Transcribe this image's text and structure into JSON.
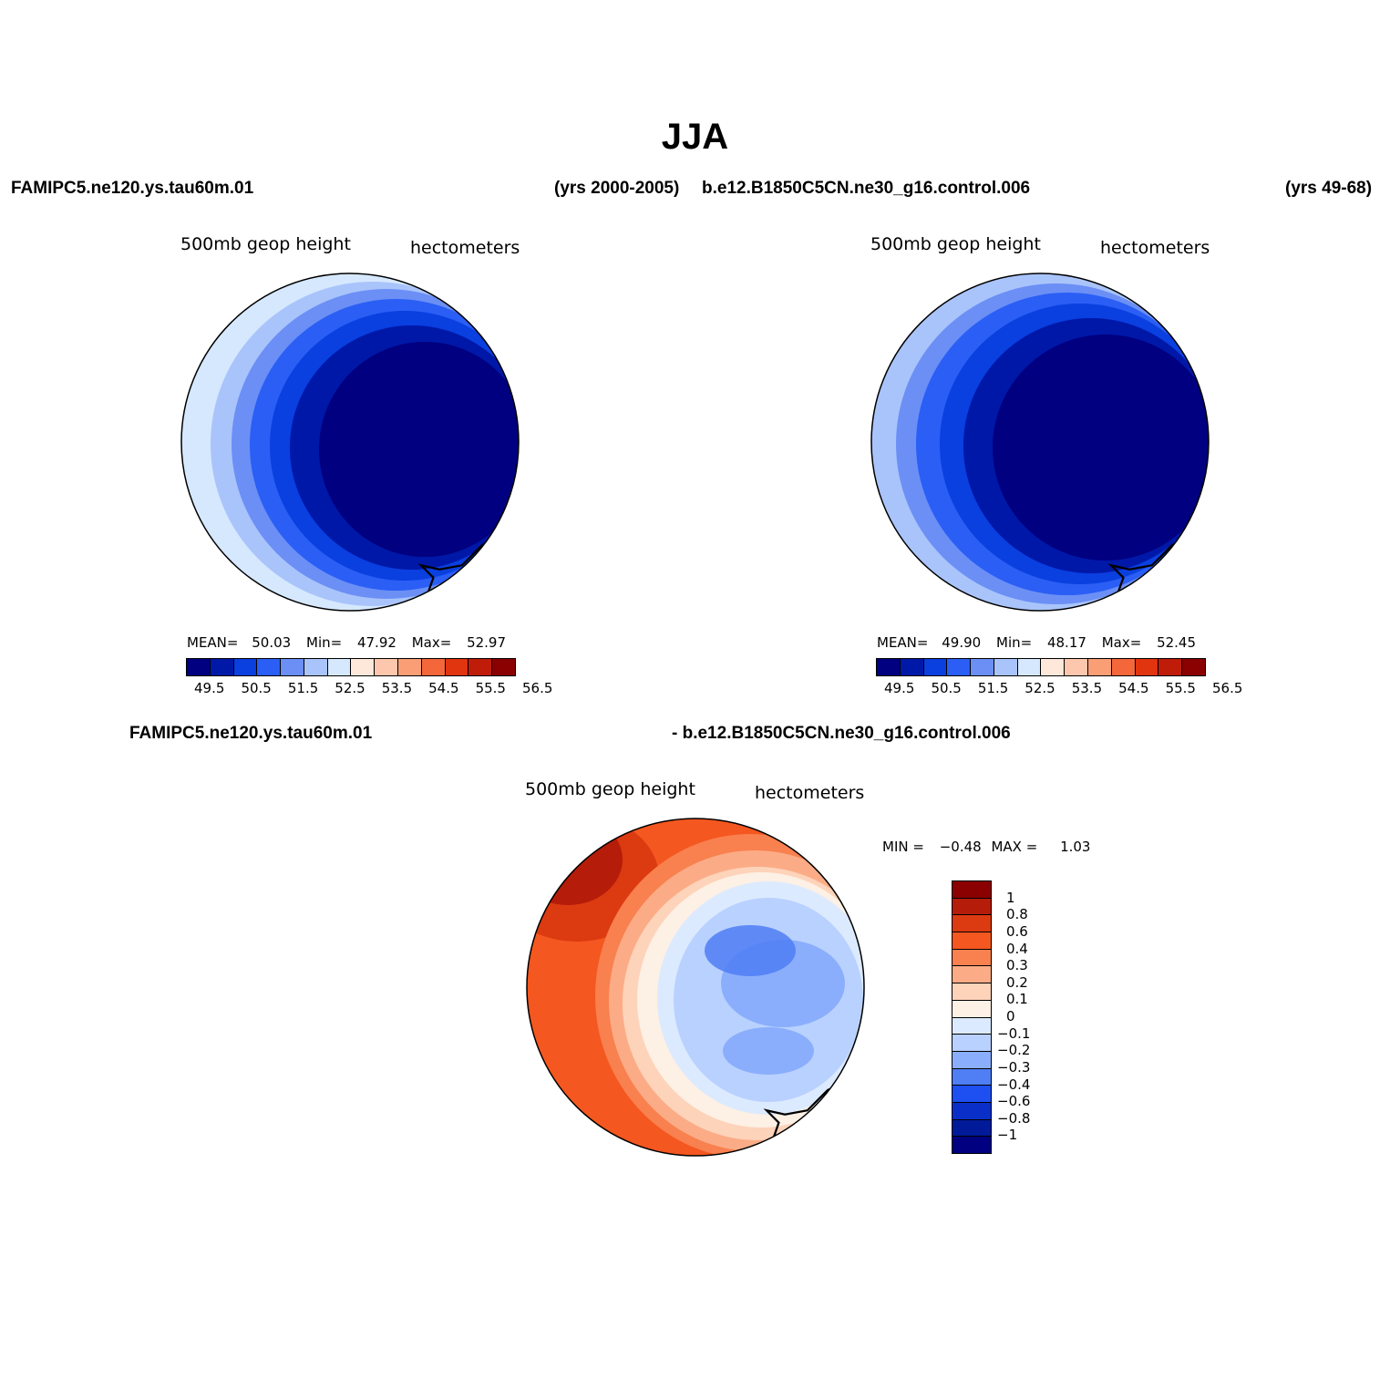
{
  "title": "JJA",
  "top_header": {
    "left_case": "FAMIPC5.ne120.ys.tau60m.01",
    "left_years": "(yrs 2000-2005)",
    "right_case": "b.e12.B1850C5CN.ne30_g16.control.006",
    "right_years": "(yrs 49-68)"
  },
  "panels": [
    {
      "variable": "500mb  geop  height",
      "units": "hectometers",
      "stats": {
        "mean_label": "MEAN=",
        "mean": "50.03",
        "min_label": "Min=",
        "min": "47.92",
        "max_label": "Max=",
        "max": "52.97"
      }
    },
    {
      "variable": "500mb  geop  height",
      "units": "hectometers",
      "stats": {
        "mean_label": "MEAN=",
        "mean": "49.90",
        "min_label": "Min=",
        "min": "48.17",
        "max_label": "Max=",
        "max": "52.45"
      }
    }
  ],
  "field_colorbar": {
    "colors": [
      "#000080",
      "#0018a8",
      "#0a3fe0",
      "#2a5ef5",
      "#6b8ff5",
      "#a9c4fb",
      "#d6e8fe",
      "#fde8da",
      "#fcc7ad",
      "#f99e75",
      "#f4673a",
      "#e0350f",
      "#bf1d0a",
      "#8b0000"
    ],
    "tick_labels": [
      "49.5",
      "50.5",
      "51.5",
      "52.5",
      "53.5",
      "54.5",
      "55.5",
      "56.5"
    ]
  },
  "diff_header": {
    "left": "FAMIPC5.ne120.ys.tau60m.01",
    "right": "- b.e12.B1850C5CN.ne30_g16.control.006"
  },
  "diff_panel": {
    "variable": "500mb  geop  height",
    "units": "hectometers",
    "minmax": {
      "min_label": "MIN =",
      "min": "−0.48",
      "max_label": "MAX =",
      "max": "1.03"
    }
  },
  "diff_colorbar": {
    "colors_top_to_bottom": [
      "#8b0000",
      "#b51d0a",
      "#dc3a10",
      "#f4571f",
      "#f9804f",
      "#fbac86",
      "#fdd3ba",
      "#fdf0e4",
      "#dceaff",
      "#b9d1ff",
      "#8aaefc",
      "#4f7ef5",
      "#1e4ff0",
      "#0a2fc8",
      "#001a99",
      "#000080"
    ],
    "tick_labels": [
      "1",
      "0.8",
      "0.6",
      "0.4",
      "0.3",
      "0.2",
      "0.1",
      "0",
      "−0.1",
      "−0.2",
      "−0.3",
      "−0.4",
      "−0.6",
      "−0.8",
      "−1"
    ]
  }
}
